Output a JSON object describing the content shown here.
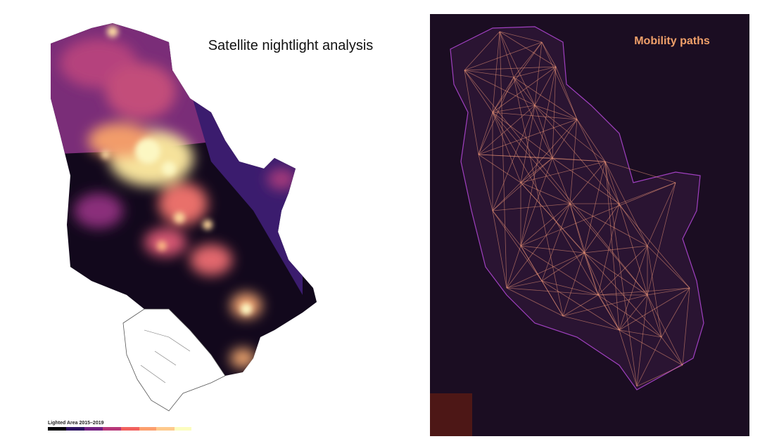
{
  "left_panel": {
    "title": "Satellite nightlight analysis",
    "legend_title": "Lighted Area 2015–2019"
  },
  "right_panel": {
    "title": "Mobility paths"
  }
}
